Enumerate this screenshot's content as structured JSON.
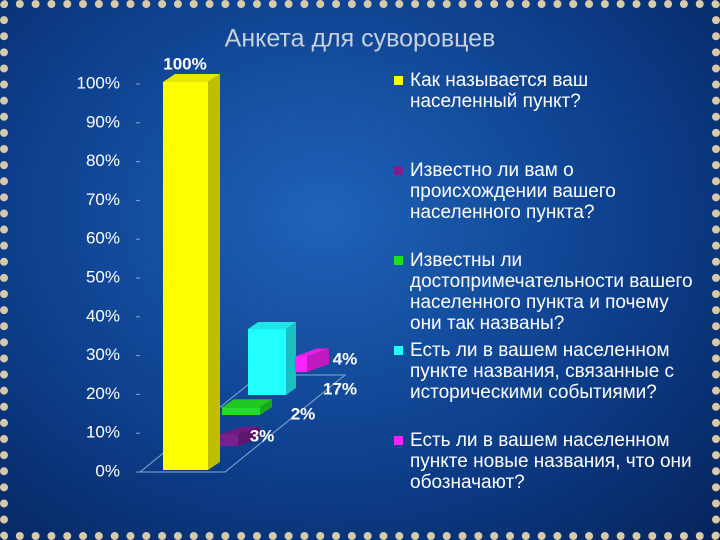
{
  "chart_data": {
    "type": "bar3d",
    "title": "Анкета для суворовцев",
    "ylim": [
      0,
      100
    ],
    "yticks": [
      {
        "value": 0,
        "label": "0%"
      },
      {
        "value": 10,
        "label": "10%"
      },
      {
        "value": 20,
        "label": "20%"
      },
      {
        "value": 30,
        "label": "30%"
      },
      {
        "value": 40,
        "label": "40%"
      },
      {
        "value": 50,
        "label": "50%"
      },
      {
        "value": 60,
        "label": "60%"
      },
      {
        "value": 70,
        "label": "70%"
      },
      {
        "value": 80,
        "label": "80%"
      },
      {
        "value": 90,
        "label": "90%"
      },
      {
        "value": 100,
        "label": "100%"
      }
    ],
    "series": [
      {
        "name": "Как называется ваш населенный пункт?",
        "color": "#ffff00",
        "values": [
          100
        ],
        "value_labels": [
          "100%"
        ]
      },
      {
        "name": "Известно ли вам о происхождении вашего населенного пункта?",
        "color": "#7a1f8f",
        "values": [
          3
        ],
        "value_labels": [
          "3%"
        ]
      },
      {
        "name": "Известны ли достопримечательности вашего населенного пункта и почему они так названы?",
        "color": "#22dd22",
        "values": [
          2
        ],
        "value_labels": [
          "2%"
        ]
      },
      {
        "name": "Есть ли в вашем населенном пункте названия, связанные с историческими событиями?",
        "color": "#22ffff",
        "values": [
          17
        ],
        "value_labels": [
          "17%"
        ]
      },
      {
        "name": "Есть ли в вашем населенном пункте новые названия, что они обозначают?",
        "color": "#ff22ff",
        "values": [
          4
        ],
        "value_labels": [
          "4%"
        ]
      }
    ]
  }
}
